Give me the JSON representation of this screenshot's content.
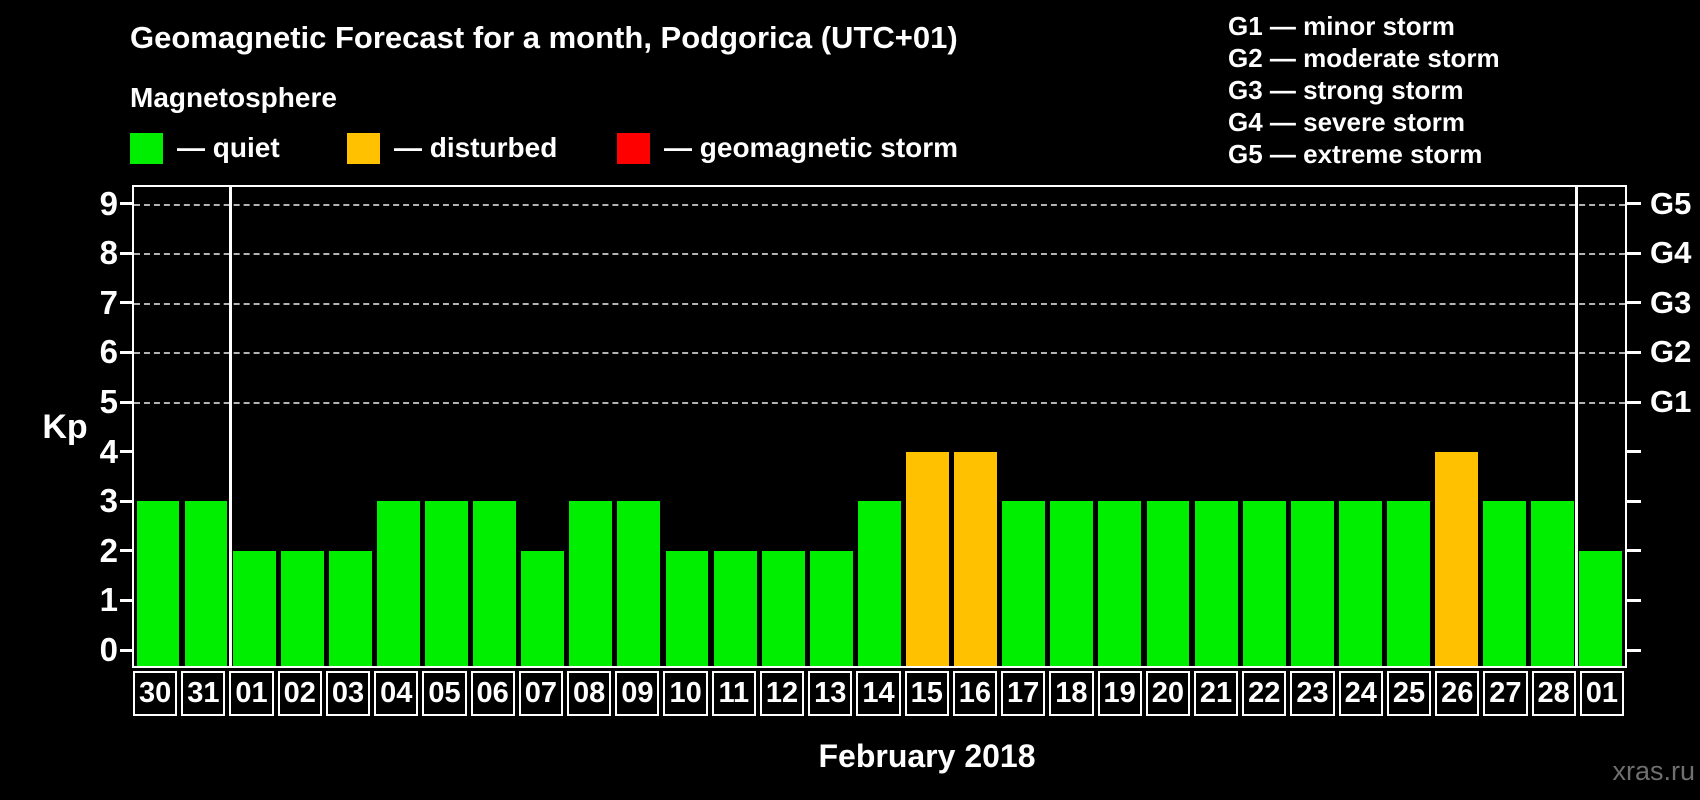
{
  "header": {
    "title": "Geomagnetic Forecast for a month, Podgorica (UTC+01)",
    "subtitle": "Magnetosphere"
  },
  "legend": {
    "items": [
      {
        "key": "quiet",
        "label": "— quiet",
        "color": "#00ef00"
      },
      {
        "key": "disturbed",
        "label": "— disturbed",
        "color": "#ffc100"
      },
      {
        "key": "storm",
        "label": "— geomagnetic storm",
        "color": "#ff0000"
      }
    ]
  },
  "g_legend": {
    "items": [
      "G1 — minor storm",
      "G2 — moderate storm",
      "G3 — strong storm",
      "G4 — severe storm",
      "G5 — extreme storm"
    ]
  },
  "watermark": "xras.ru",
  "chart_data": {
    "type": "bar",
    "title": "Geomagnetic Forecast for a month, Podgorica (UTC+01)",
    "xlabel": "February 2018",
    "ylabel": "Kp",
    "ylim": [
      0,
      9
    ],
    "yticks": [
      0,
      1,
      2,
      3,
      4,
      5,
      6,
      7,
      8,
      9
    ],
    "gridlines_at": [
      5,
      6,
      7,
      8,
      9
    ],
    "grid": "dashed-horizontal-at-storm-levels",
    "legend_position": "top",
    "right_axis": {
      "labels": [
        "G1",
        "G2",
        "G3",
        "G4",
        "G5"
      ],
      "kp_levels": [
        5,
        6,
        7,
        8,
        9
      ]
    },
    "categories": [
      "30",
      "31",
      "01",
      "02",
      "03",
      "04",
      "05",
      "06",
      "07",
      "08",
      "09",
      "10",
      "11",
      "12",
      "13",
      "14",
      "15",
      "16",
      "17",
      "18",
      "19",
      "20",
      "21",
      "22",
      "23",
      "24",
      "25",
      "26",
      "27",
      "28",
      "01"
    ],
    "values": [
      3,
      3,
      2,
      2,
      2,
      3,
      3,
      3,
      2,
      3,
      3,
      2,
      2,
      2,
      2,
      3,
      4,
      4,
      3,
      3,
      3,
      3,
      3,
      3,
      3,
      3,
      3,
      4,
      3,
      3,
      2
    ],
    "status": [
      "quiet",
      "quiet",
      "quiet",
      "quiet",
      "quiet",
      "quiet",
      "quiet",
      "quiet",
      "quiet",
      "quiet",
      "quiet",
      "quiet",
      "quiet",
      "quiet",
      "quiet",
      "quiet",
      "disturbed",
      "disturbed",
      "quiet",
      "quiet",
      "quiet",
      "quiet",
      "quiet",
      "quiet",
      "quiet",
      "quiet",
      "quiet",
      "disturbed",
      "quiet",
      "quiet",
      "quiet"
    ],
    "colors": {
      "quiet": "#00ef00",
      "disturbed": "#ffc100",
      "storm": "#ff0000"
    },
    "month_boundary_cell_indices": [
      2,
      30
    ]
  }
}
